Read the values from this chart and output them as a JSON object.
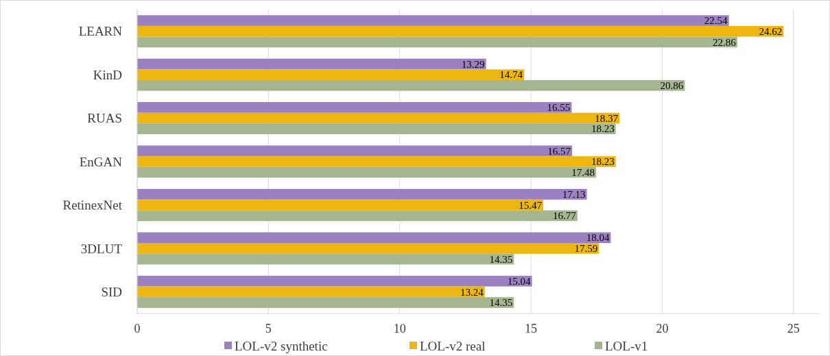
{
  "chart_data": {
    "type": "bar",
    "orientation": "horizontal",
    "categories": [
      "LEARN",
      "KinD",
      "RUAS",
      "EnGAN",
      "RetinexNet",
      "3DLUT",
      "SID"
    ],
    "series": [
      {
        "name": "LOL-v2 synthetic",
        "color": "#9b80c2",
        "values": [
          22.54,
          13.29,
          16.55,
          16.57,
          17.13,
          18.04,
          15.04
        ]
      },
      {
        "name": "LOL-v2 real",
        "color": "#eeb70f",
        "values": [
          24.62,
          14.74,
          18.37,
          18.23,
          15.47,
          17.59,
          13.24
        ]
      },
      {
        "name": "LOL-v1",
        "color": "#a4b590",
        "values": [
          22.86,
          20.86,
          18.23,
          17.48,
          16.77,
          14.35,
          14.35
        ]
      }
    ],
    "xlim": [
      0,
      26
    ],
    "xticks": [
      0,
      5,
      10,
      15,
      20,
      25
    ],
    "grid": "x",
    "legend": "bottom",
    "data_labels": true
  }
}
